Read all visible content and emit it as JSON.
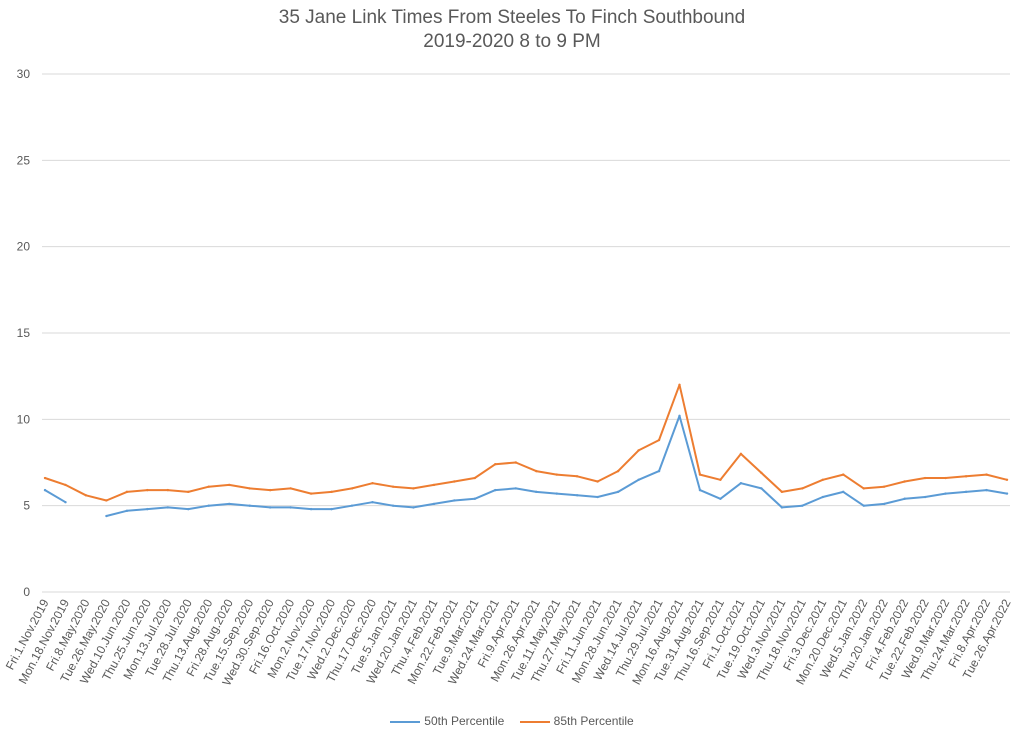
{
  "chart_data": {
    "type": "line",
    "title": "35 Jane Link Times From Steeles To Finch Southbound",
    "subtitle": "2019-2020 8 to 9 PM",
    "xlabel": "",
    "ylabel": "",
    "ylim": [
      0,
      30
    ],
    "yticks": [
      "0",
      "5",
      "10",
      "15",
      "20",
      "25",
      "30"
    ],
    "grid": true,
    "legend_position": "bottom",
    "categories": [
      "Fri.1.Nov.2019",
      "Mon.18.Nov.2019",
      "Fri.8.May.2020",
      "Tue.26.May.2020",
      "Wed.10.Jun.2020",
      "Thu.25.Jun.2020",
      "Mon.13.Jul.2020",
      "Tue.28.Jul.2020",
      "Thu.13.Aug.2020",
      "Fri.28.Aug.2020",
      "Tue.15.Sep.2020",
      "Wed.30.Sep.2020",
      "Fri.16.Oct.2020",
      "Mon.2.Nov.2020",
      "Tue.17.Nov.2020",
      "Wed.2.Dec.2020",
      "Thu.17.Dec.2020",
      "Tue.5.Jan.2021",
      "Wed.20.Jan.2021",
      "Thu.4.Feb.2021",
      "Mon.22.Feb.2021",
      "Tue.9.Mar.2021",
      "Wed.24.Mar.2021",
      "Fri.9.Apr.2021",
      "Mon.26.Apr.2021",
      "Tue.11.May.2021",
      "Thu.27.May.2021",
      "Fri.11.Jun.2021",
      "Mon.28.Jun.2021",
      "Wed.14.Jul.2021",
      "Thu.29.Jul.2021",
      "Mon.16.Aug.2021",
      "Tue.31.Aug.2021",
      "Thu.16.Sep.2021",
      "Fri.1.Oct.2021",
      "Tue.19.Oct.2021",
      "Wed.3.Nov.2021",
      "Thu.18.Nov.2021",
      "Fri.3.Dec.2021",
      "Mon.20.Dec.2021",
      "Wed.5.Jan.2022",
      "Thu.20.Jan.2022",
      "Fri.4.Feb.2022",
      "Tue.22.Feb.2022",
      "Wed.9.Mar.2022",
      "Thu.24.Mar.2022",
      "Fri.8.Apr.2022",
      "Tue.26.Apr.2022"
    ],
    "series": [
      {
        "name": "50th Percentile",
        "color": "#5b9bd5",
        "values": [
          5.9,
          5.2,
          null,
          4.4,
          4.7,
          4.8,
          4.9,
          4.8,
          5.0,
          5.1,
          5.0,
          4.9,
          4.9,
          4.8,
          4.8,
          5.0,
          5.2,
          5.0,
          4.9,
          5.1,
          5.3,
          5.4,
          5.9,
          6.0,
          5.8,
          5.7,
          5.6,
          5.5,
          5.8,
          6.5,
          7.0,
          10.2,
          5.9,
          5.4,
          6.3,
          6.0,
          4.9,
          5.0,
          5.5,
          5.8,
          5.0,
          5.1,
          5.4,
          5.5,
          5.7,
          5.8,
          5.9,
          5.7
        ]
      },
      {
        "name": "85th Percentile",
        "color": "#ed7d31",
        "values": [
          6.6,
          6.2,
          5.6,
          5.3,
          5.8,
          5.9,
          5.9,
          5.8,
          6.1,
          6.2,
          6.0,
          5.9,
          6.0,
          5.7,
          5.8,
          6.0,
          6.3,
          6.1,
          6.0,
          6.2,
          6.4,
          6.6,
          7.4,
          7.5,
          7.0,
          6.8,
          6.7,
          6.4,
          7.0,
          8.2,
          8.8,
          12.0,
          6.8,
          6.5,
          8.0,
          6.9,
          5.8,
          6.0,
          6.5,
          6.8,
          6.0,
          6.1,
          6.4,
          6.6,
          6.6,
          6.7,
          6.8,
          6.5
        ]
      }
    ]
  }
}
